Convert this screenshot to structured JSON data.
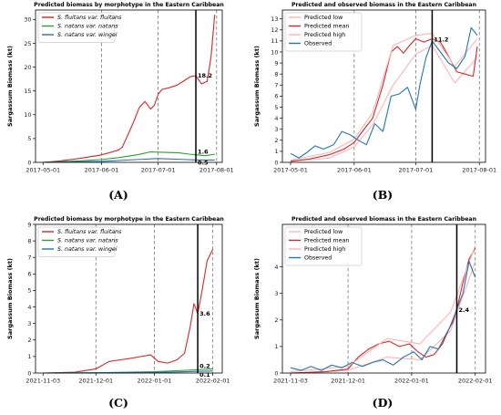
{
  "chart_data": [
    {
      "type": "line",
      "panel_label": "(A)",
      "title": "Predicted biomass by morphotype in the Eastern Caribbean",
      "xlabel": "",
      "ylabel": "Sargassum Biomass (kt)",
      "x_ticks": [
        "2017-05-01",
        "2017-06-01",
        "2017-07-01",
        "2017-08-01"
      ],
      "x_range": [
        "2017-04-27",
        "2017-08-04"
      ],
      "y_ticks": [
        0,
        5,
        10,
        15,
        20,
        25,
        30
      ],
      "ylim": [
        0,
        32
      ],
      "legend": {
        "placement": "upper-left",
        "entries": [
          "S. fluitans var. fluitans",
          "S. natans var. natans",
          "S. natans var. wingei"
        ]
      },
      "dashed_vlines": [
        "2017-06-01",
        "2017-07-01",
        "2017-08-01"
      ],
      "solid_vline": "2017-07-21",
      "annotations": [
        {
          "text": "18.2",
          "x": "2017-07-21",
          "y": 18.2
        },
        {
          "text": "1.6",
          "x": "2017-07-21",
          "y": 1.6
        },
        {
          "text": "0.5",
          "x": "2017-07-21",
          "y": 0.5
        }
      ],
      "series": [
        {
          "name": "S. fluitans var. fluitans",
          "color": "#d62728",
          "x": [
            "2017-05-01",
            "2017-05-10",
            "2017-05-20",
            "2017-05-31",
            "2017-06-05",
            "2017-06-10",
            "2017-06-12",
            "2017-06-15",
            "2017-06-18",
            "2017-06-21",
            "2017-06-24",
            "2017-06-27",
            "2017-06-29",
            "2017-07-01",
            "2017-07-03",
            "2017-07-07",
            "2017-07-11",
            "2017-07-15",
            "2017-07-18",
            "2017-07-21",
            "2017-07-24",
            "2017-07-27",
            "2017-07-29",
            "2017-07-31"
          ],
          "y": [
            0,
            0.3,
            0.8,
            1.5,
            2.0,
            2.6,
            3.2,
            5.8,
            8.5,
            11.5,
            12.8,
            11.2,
            12.0,
            14.3,
            15.3,
            15.7,
            16.2,
            17.2,
            18.0,
            18.2,
            16.5,
            17.0,
            22.0,
            31.0
          ]
        },
        {
          "name": "S. natans var. natans",
          "color": "#2ca02c",
          "x": [
            "2017-05-01",
            "2017-05-20",
            "2017-06-01",
            "2017-06-10",
            "2017-06-20",
            "2017-06-27",
            "2017-07-05",
            "2017-07-12",
            "2017-07-18",
            "2017-07-21",
            "2017-07-26",
            "2017-07-31"
          ],
          "y": [
            0,
            0.3,
            0.6,
            1.0,
            1.6,
            2.2,
            2.1,
            2.0,
            1.7,
            1.6,
            1.4,
            1.7
          ]
        },
        {
          "name": "S. natans var. wingei",
          "color": "#1f77b4",
          "x": [
            "2017-05-01",
            "2017-06-01",
            "2017-06-20",
            "2017-07-01",
            "2017-07-15",
            "2017-07-21",
            "2017-07-31"
          ],
          "y": [
            0,
            0.2,
            0.6,
            0.8,
            0.6,
            0.5,
            0.5
          ]
        }
      ]
    },
    {
      "type": "line",
      "panel_label": "(B)",
      "title": "Predicted and observed biomass in the Eastern Caribbean",
      "xlabel": "",
      "ylabel": "Sargassum Biomass (kt)",
      "x_ticks": [
        "2017-05-01",
        "2017-06-01",
        "2017-07-01",
        "2017-08-01"
      ],
      "x_range": [
        "2017-04-27",
        "2017-08-04"
      ],
      "y_ticks": [
        0,
        1,
        2,
        3,
        4,
        5,
        6,
        7,
        8,
        9,
        10,
        11,
        12,
        13
      ],
      "ylim": [
        0,
        13.8
      ],
      "legend": {
        "placement": "upper-left",
        "entries": [
          "Predicted low",
          "Predicted mean",
          "Predicted high",
          "Observed"
        ]
      },
      "dashed_vlines": [
        "2017-06-01",
        "2017-07-01",
        "2017-08-01"
      ],
      "solid_vline": "2017-07-09",
      "annotations": [
        {
          "text": "11.2",
          "x": "2017-07-09",
          "y": 11.2
        }
      ],
      "series": [
        {
          "name": "Predicted low",
          "color": "#ffb3b3",
          "x": [
            "2017-05-01",
            "2017-05-20",
            "2017-06-01",
            "2017-06-10",
            "2017-06-20",
            "2017-07-01",
            "2017-07-09",
            "2017-07-20",
            "2017-07-31"
          ],
          "y": [
            0.1,
            0.4,
            1.4,
            3.4,
            7.0,
            9.8,
            10.6,
            7.2,
            9.5
          ]
        },
        {
          "name": "Predicted mean",
          "color": "#d62728",
          "x": [
            "2017-05-01",
            "2017-05-10",
            "2017-05-20",
            "2017-05-27",
            "2017-06-01",
            "2017-06-05",
            "2017-06-10",
            "2017-06-15",
            "2017-06-19",
            "2017-06-22",
            "2017-06-25",
            "2017-06-28",
            "2017-07-01",
            "2017-07-05",
            "2017-07-09",
            "2017-07-13",
            "2017-07-17",
            "2017-07-21",
            "2017-07-25",
            "2017-07-29",
            "2017-07-31"
          ],
          "y": [
            0.1,
            0.3,
            0.7,
            1.2,
            1.8,
            2.8,
            4.0,
            7.0,
            10.0,
            10.5,
            9.9,
            10.6,
            11.2,
            10.9,
            11.2,
            10.9,
            9.6,
            8.2,
            8.0,
            7.8,
            10.5
          ]
        },
        {
          "name": "Predicted high",
          "color": "#ffb3b3",
          "x": [
            "2017-05-01",
            "2017-05-20",
            "2017-06-01",
            "2017-06-10",
            "2017-06-20",
            "2017-07-01",
            "2017-07-09",
            "2017-07-20",
            "2017-07-31"
          ],
          "y": [
            0.2,
            0.9,
            2.1,
            4.5,
            10.6,
            11.5,
            11.7,
            8.7,
            11.2
          ]
        },
        {
          "name": "Observed",
          "color": "#1f77b4",
          "x": [
            "2017-05-01",
            "2017-05-05",
            "2017-05-09",
            "2017-05-13",
            "2017-05-17",
            "2017-05-22",
            "2017-05-26",
            "2017-05-30",
            "2017-06-03",
            "2017-06-07",
            "2017-06-11",
            "2017-06-15",
            "2017-06-19",
            "2017-06-23",
            "2017-06-27",
            "2017-07-01",
            "2017-07-03",
            "2017-07-06",
            "2017-07-09",
            "2017-07-13",
            "2017-07-17",
            "2017-07-21",
            "2017-07-25",
            "2017-07-28",
            "2017-07-31"
          ],
          "y": [
            0.8,
            0.4,
            0.9,
            1.5,
            1.2,
            1.6,
            2.8,
            2.5,
            2.0,
            1.6,
            3.5,
            2.8,
            6.0,
            6.2,
            6.8,
            4.8,
            7.0,
            9.5,
            11.0,
            10.0,
            9.0,
            8.5,
            9.6,
            12.2,
            11.5
          ]
        }
      ]
    },
    {
      "type": "line",
      "panel_label": "(C)",
      "title": "Predicted biomass by morphotype in the Eastern Caribbean",
      "xlabel": "",
      "ylabel": "Sargassum Biomass (kt)",
      "x_ticks": [
        "2021-11-03",
        "2021-12-01",
        "2022-01-01",
        "2022-02-01"
      ],
      "x_range": [
        "2021-10-30",
        "2022-02-06"
      ],
      "y_ticks": [
        0,
        1,
        2,
        3,
        4,
        5,
        6,
        7,
        8,
        9
      ],
      "ylim": [
        0,
        9
      ],
      "legend": {
        "placement": "upper-left",
        "entries": [
          "S. fluitans var. fluitans",
          "S. natans var. natans",
          "S. natans var. wingei"
        ]
      },
      "dashed_vlines": [
        "2021-12-01",
        "2022-01-01",
        "2022-02-01"
      ],
      "solid_vline": "2022-01-24",
      "annotations": [
        {
          "text": "3.6",
          "x": "2022-01-24",
          "y": 3.6
        },
        {
          "text": "0.2",
          "x": "2022-01-24",
          "y": 0.2
        },
        {
          "text": "0.1",
          "x": "2022-01-24",
          "y": 0.1
        }
      ],
      "series": [
        {
          "name": "S. fluitans var. fluitans",
          "color": "#d62728",
          "x": [
            "2021-11-03",
            "2021-11-20",
            "2021-12-01",
            "2021-12-08",
            "2021-12-14",
            "2021-12-20",
            "2021-12-25",
            "2021-12-30",
            "2022-01-03",
            "2022-01-08",
            "2022-01-13",
            "2022-01-17",
            "2022-01-20",
            "2022-01-22",
            "2022-01-24",
            "2022-01-26",
            "2022-01-29",
            "2022-02-01"
          ],
          "y": [
            0,
            0.05,
            0.25,
            0.7,
            0.8,
            0.9,
            1.0,
            1.1,
            0.7,
            0.6,
            0.8,
            1.2,
            2.8,
            4.2,
            3.6,
            4.8,
            6.8,
            7.5
          ]
        },
        {
          "name": "S. natans var. natans",
          "color": "#2ca02c",
          "x": [
            "2021-11-03",
            "2021-12-01",
            "2022-01-01",
            "2022-01-24",
            "2022-02-01"
          ],
          "y": [
            0,
            0.02,
            0.08,
            0.2,
            0.25
          ]
        },
        {
          "name": "S. natans var. wingei",
          "color": "#1f77b4",
          "x": [
            "2021-11-03",
            "2021-12-01",
            "2022-01-01",
            "2022-01-24",
            "2022-02-01"
          ],
          "y": [
            0,
            0.01,
            0.03,
            0.1,
            0.12
          ]
        }
      ]
    },
    {
      "type": "line",
      "panel_label": "(D)",
      "title": "Predicted and observed biomass in the Eastern Caribbean",
      "xlabel": "",
      "ylabel": "Sargassum Biomass (kt)",
      "x_ticks": [
        "2021-11-03",
        "2021-12-01",
        "2022-01-01",
        "2022-02-01"
      ],
      "x_range": [
        "2021-10-30",
        "2022-02-06"
      ],
      "y_ticks": [
        0,
        1,
        2,
        3,
        4
      ],
      "ylim": [
        0,
        5.6
      ],
      "legend": {
        "placement": "upper-left",
        "entries": [
          "Predicted low",
          "Predicted mean",
          "Predicted high",
          "Observed"
        ]
      },
      "dashed_vlines": [
        "2021-12-01",
        "2022-01-01",
        "2022-02-01"
      ],
      "solid_vline": "2022-01-23",
      "annotations": [
        {
          "text": "2.4",
          "x": "2022-01-23",
          "y": 2.4
        }
      ],
      "series": [
        {
          "name": "Predicted low",
          "color": "#ffb3b3",
          "x": [
            "2021-11-03",
            "2021-12-01",
            "2021-12-20",
            "2022-01-05",
            "2022-01-20",
            "2022-02-01"
          ],
          "y": [
            0,
            0.1,
            0.6,
            0.5,
            1.6,
            4.2
          ]
        },
        {
          "name": "Predicted mean",
          "color": "#d62728",
          "x": [
            "2021-11-03",
            "2021-11-20",
            "2021-12-01",
            "2021-12-06",
            "2021-12-11",
            "2021-12-16",
            "2021-12-21",
            "2021-12-26",
            "2021-12-31",
            "2022-01-04",
            "2022-01-08",
            "2022-01-12",
            "2022-01-16",
            "2022-01-20",
            "2022-01-23",
            "2022-01-26",
            "2022-01-29",
            "2022-02-01"
          ],
          "y": [
            0,
            0.05,
            0.15,
            0.6,
            0.9,
            1.1,
            1.2,
            1.0,
            1.1,
            0.8,
            0.6,
            0.7,
            1.1,
            1.8,
            2.4,
            3.4,
            4.3,
            4.7
          ]
        },
        {
          "name": "Predicted high",
          "color": "#ffb3b3",
          "x": [
            "2021-11-03",
            "2021-12-01",
            "2021-12-20",
            "2022-01-05",
            "2022-01-20",
            "2022-02-01"
          ],
          "y": [
            0.05,
            0.25,
            1.3,
            1.1,
            2.3,
            4.8
          ]
        },
        {
          "name": "Observed",
          "color": "#1f77b4",
          "x": [
            "2021-11-03",
            "2021-11-08",
            "2021-11-13",
            "2021-11-18",
            "2021-11-23",
            "2021-11-28",
            "2021-12-03",
            "2021-12-08",
            "2021-12-13",
            "2021-12-18",
            "2021-12-23",
            "2021-12-28",
            "2022-01-02",
            "2022-01-06",
            "2022-01-10",
            "2022-01-14",
            "2022-01-18",
            "2022-01-21",
            "2022-01-23",
            "2022-01-26",
            "2022-01-29",
            "2022-02-01"
          ],
          "y": [
            0.2,
            0.1,
            0.25,
            0.1,
            0.3,
            0.2,
            0.4,
            0.25,
            0.4,
            0.5,
            0.3,
            0.6,
            0.8,
            0.5,
            1.0,
            0.9,
            1.5,
            1.9,
            2.4,
            3.0,
            4.2,
            3.6
          ]
        }
      ]
    }
  ]
}
